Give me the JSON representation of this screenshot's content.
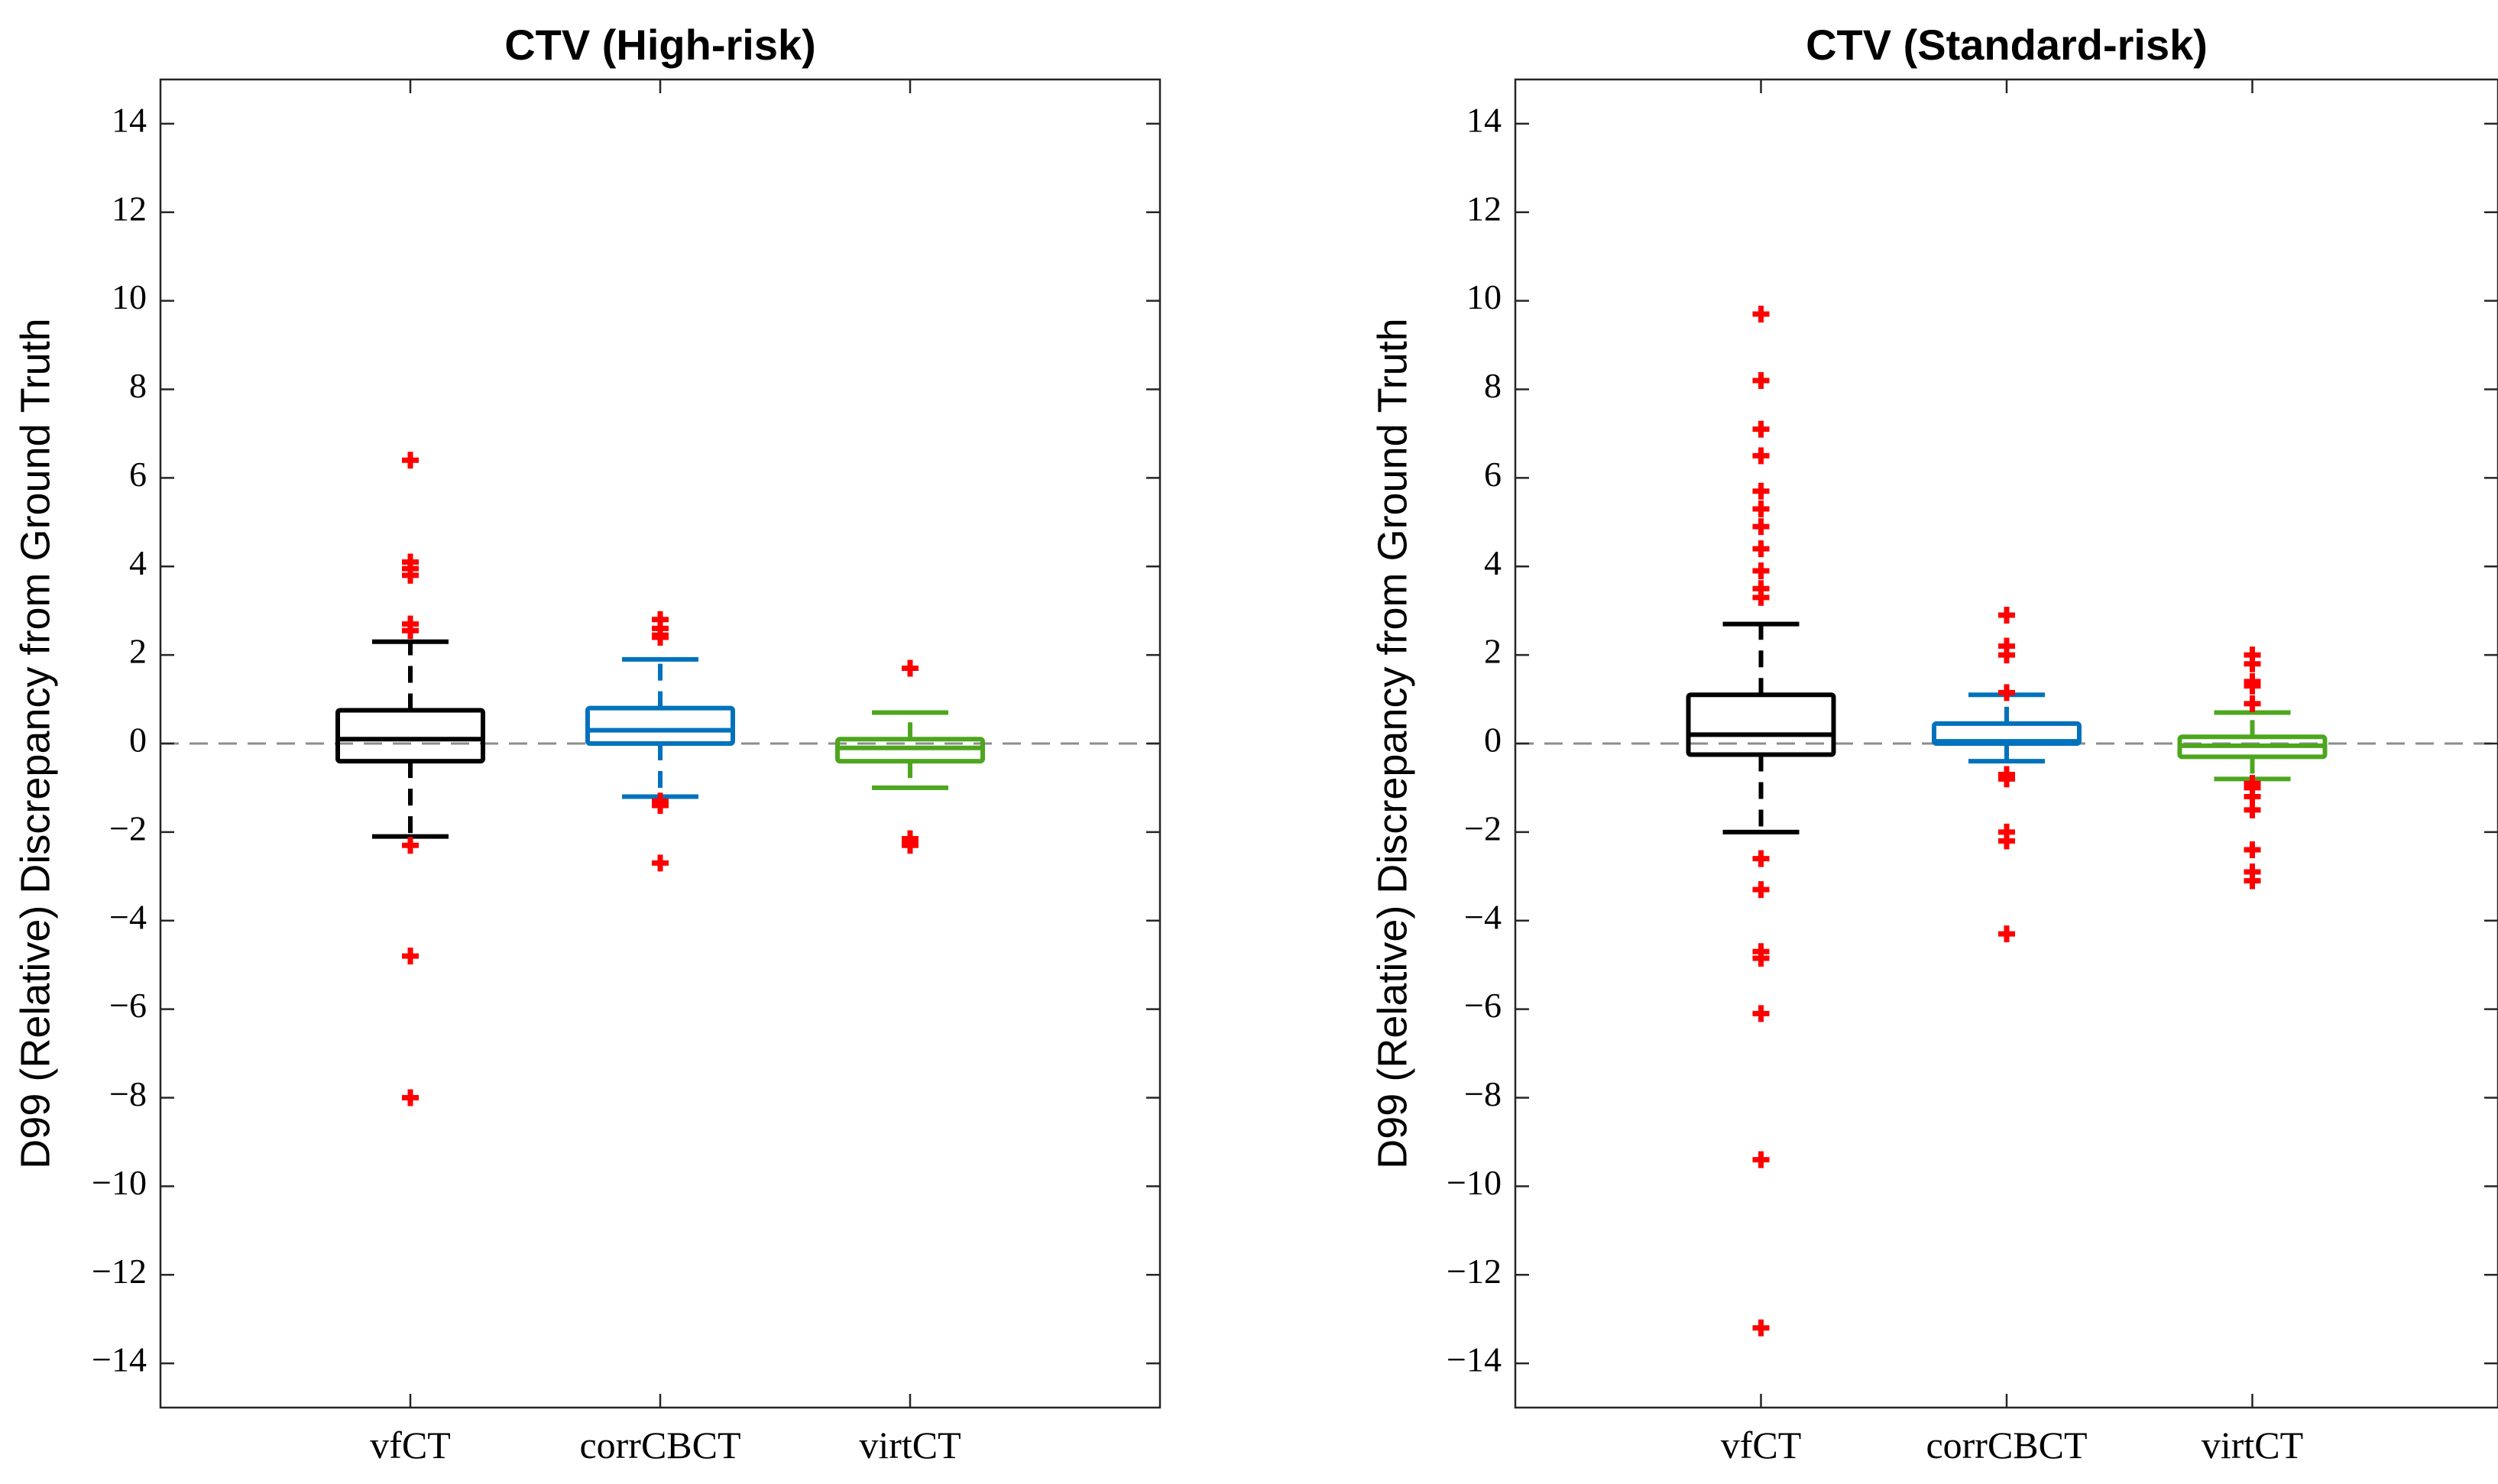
{
  "chart_data": [
    {
      "type": "boxplot",
      "title": "CTV (High-risk)",
      "ylabel": "D99 (Relative) Discrepancy from Ground Truth",
      "xlabel": "",
      "ylim": [
        -15,
        15
      ],
      "yticks": [
        -14,
        -12,
        -10,
        -8,
        -6,
        -4,
        -2,
        0,
        2,
        4,
        6,
        8,
        10,
        12,
        14
      ],
      "ytick_labels": [
        "−14",
        "−12",
        "−10",
        "−8",
        "−6",
        "−4",
        "−2",
        "0",
        "2",
        "4",
        "6",
        "8",
        "10",
        "12",
        "14"
      ],
      "reference_line": 0,
      "categories": [
        "vfCT",
        "corrCBCT",
        "virtCT"
      ],
      "boxes": [
        {
          "name": "vfCT",
          "color": "#000000",
          "whisker_low": -2.1,
          "q1": -0.4,
          "median": 0.1,
          "q3": 0.75,
          "whisker_high": 2.3,
          "outliers": [
            6.4,
            4.1,
            3.95,
            3.8,
            2.7,
            2.55,
            -2.3,
            -4.8,
            -8.0
          ]
        },
        {
          "name": "corrCBCT",
          "color": "#0072BD",
          "whisker_low": -1.2,
          "q1": 0.0,
          "median": 0.3,
          "q3": 0.8,
          "whisker_high": 1.9,
          "outliers": [
            2.8,
            2.6,
            2.45,
            2.4,
            -1.3,
            -1.4,
            -2.7
          ]
        },
        {
          "name": "virtCT",
          "color": "#4DA61E",
          "whisker_low": -1.0,
          "q1": -0.4,
          "median": -0.1,
          "q3": 0.1,
          "whisker_high": 0.7,
          "outliers": [
            1.7,
            -2.15,
            -2.25,
            -2.3
          ]
        }
      ]
    },
    {
      "type": "boxplot",
      "title": "CTV (Standard-risk)",
      "ylabel": "D99 (Relative) Discrepancy from Ground Truth",
      "xlabel": "",
      "ylim": [
        -15,
        15
      ],
      "yticks": [
        -14,
        -12,
        -10,
        -8,
        -6,
        -4,
        -2,
        0,
        2,
        4,
        6,
        8,
        10,
        12,
        14
      ],
      "ytick_labels": [
        "−14",
        "−12",
        "−10",
        "−8",
        "−6",
        "−4",
        "−2",
        "0",
        "2",
        "4",
        "6",
        "8",
        "10",
        "12",
        "14"
      ],
      "reference_line": 0,
      "categories": [
        "vfCT",
        "corrCBCT",
        "virtCT"
      ],
      "boxes": [
        {
          "name": "vfCT",
          "color": "#000000",
          "whisker_low": -2.0,
          "q1": -0.25,
          "median": 0.2,
          "q3": 1.1,
          "whisker_high": 2.7,
          "outliers": [
            9.7,
            8.2,
            7.1,
            6.5,
            5.7,
            5.3,
            4.9,
            4.4,
            3.9,
            3.5,
            3.3,
            -2.6,
            -3.3,
            -4.7,
            -4.85,
            -6.1,
            -9.4,
            -13.2
          ]
        },
        {
          "name": "corrCBCT",
          "color": "#0072BD",
          "whisker_low": -0.4,
          "q1": 0.0,
          "median": 0.05,
          "q3": 0.45,
          "whisker_high": 1.1,
          "outliers": [
            2.9,
            2.2,
            2.0,
            1.15,
            -0.7,
            -0.8,
            -2.0,
            -2.2,
            -4.3
          ]
        },
        {
          "name": "virtCT",
          "color": "#4DA61E",
          "whisker_low": -0.8,
          "q1": -0.3,
          "median": -0.05,
          "q3": 0.15,
          "whisker_high": 0.7,
          "outliers": [
            2.0,
            1.8,
            1.4,
            1.3,
            0.9,
            -0.9,
            -1.0,
            -1.2,
            -1.5,
            -2.4,
            -2.9,
            -3.1
          ]
        }
      ]
    }
  ]
}
